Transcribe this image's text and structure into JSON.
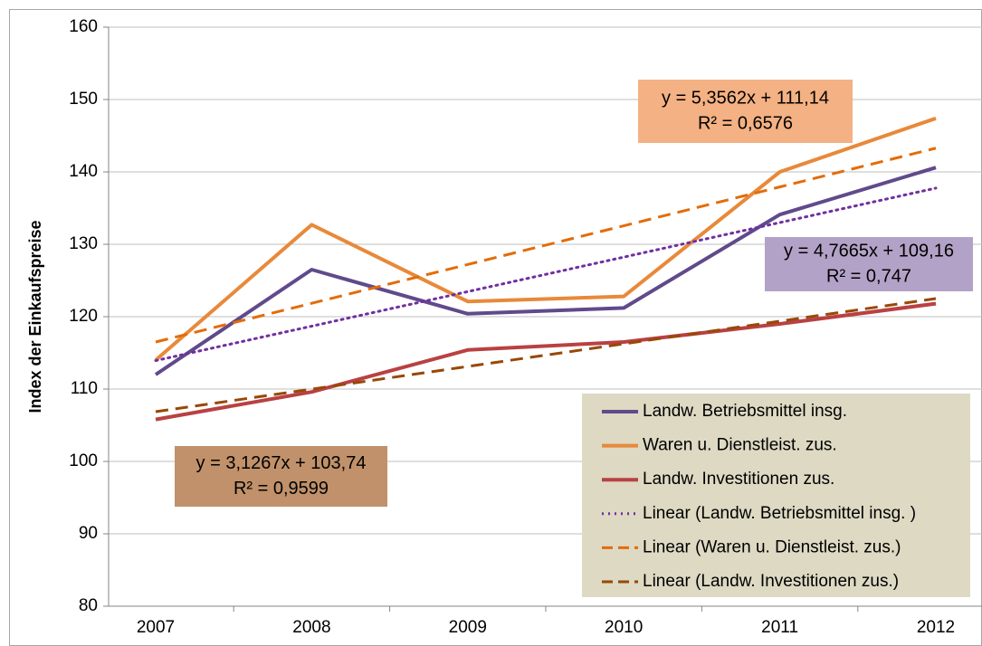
{
  "chart_data": {
    "type": "line",
    "y_label": "Index der Einkaufspreise",
    "categories": [
      "2007",
      "2008",
      "2009",
      "2010",
      "2011",
      "2012"
    ],
    "ylim": [
      80,
      160
    ],
    "yticks": [
      80,
      90,
      100,
      110,
      120,
      130,
      140,
      150,
      160
    ],
    "grid": true,
    "legend": "lower right",
    "series": [
      {
        "name": "Landw. Betriebsmittel insg.",
        "color": "#604a8b",
        "style": "solid",
        "values": [
          112,
          126.5,
          120.4,
          121.2,
          134.1,
          140.6
        ]
      },
      {
        "name": "Waren u. Dienstleist. zus.",
        "color": "#e8893a",
        "style": "solid",
        "values": [
          114,
          132.7,
          122.1,
          122.8,
          140,
          147.4
        ]
      },
      {
        "name": "Landw. Investitionen  zus.",
        "color": "#b94142",
        "style": "solid",
        "values": [
          105.8,
          109.6,
          115.4,
          116.5,
          119,
          121.8
        ]
      },
      {
        "name": "Linear (Landw. Betriebsmittel insg. )",
        "color": "#7030a0",
        "style": "dotted",
        "values": [
          113.93,
          118.69,
          123.46,
          128.23,
          133.0,
          137.76
        ]
      },
      {
        "name": "Linear (Waren u. Dienstleist. zus.)",
        "color": "#e36c09",
        "style": "dashed",
        "values": [
          116.5,
          121.85,
          127.21,
          132.56,
          137.92,
          143.28
        ]
      },
      {
        "name": "Linear (Landw. Investitionen  zus.)",
        "color": "#984807",
        "style": "dashed",
        "values": [
          106.87,
          109.99,
          113.12,
          116.25,
          119.38,
          122.5
        ]
      }
    ],
    "annotations": [
      {
        "lines": [
          "y = 5,3562x + 111,14",
          "R² = 0,6576"
        ],
        "color": "#f4b183"
      },
      {
        "lines": [
          "y = 4,7665x + 109,16",
          "R² = 0,747"
        ],
        "color": "#b3a2c7"
      },
      {
        "lines": [
          "y = 3,1267x + 103,74",
          "R² = 0,9599"
        ],
        "color": "#c0916a"
      }
    ]
  }
}
